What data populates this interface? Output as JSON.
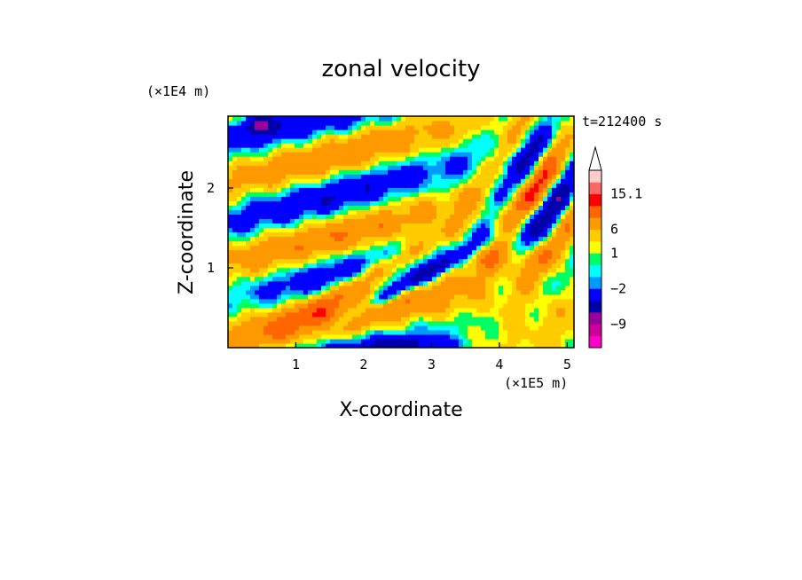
{
  "chart_data": {
    "type": "heatmap",
    "title": "zonal velocity",
    "xlabel": "X-coordinate",
    "ylabel": "Z-coordinate",
    "x_unit": "(×1E5 m)",
    "y_unit": "(×1E4 m)",
    "time_label": "t=212400 s",
    "xlim": [
      0,
      5.1
    ],
    "ylim": [
      0,
      2.9
    ],
    "xticks": [
      1,
      2,
      3,
      4,
      5
    ],
    "yticks": [
      1,
      2
    ],
    "colorbar": {
      "levels": [
        -15,
        -12,
        -9,
        -6,
        -3,
        -2,
        -1,
        0,
        1,
        3,
        6,
        9,
        12,
        15.1
      ],
      "labels": [
        {
          "text": "15.1",
          "value": 15.1
        },
        {
          "text": "6",
          "value": 6
        },
        {
          "text": "1",
          "value": 1
        },
        {
          "text": "−2",
          "value": -2
        },
        {
          "text": "−9",
          "value": -9
        }
      ],
      "colors": [
        "#ff00cc",
        "#cc0099",
        "#990099",
        "#0000aa",
        "#0000ff",
        "#0099ff",
        "#00ffff",
        "#00ff66",
        "#ffff00",
        "#ffcc00",
        "#ff9900",
        "#ff6600",
        "#ff0000",
        "#ff6666",
        "#ffcccc"
      ]
    },
    "bands": [
      {
        "z": 2.75,
        "amp": -4,
        "note": "upper left blue cell near x 0.4"
      },
      {
        "z": 2.45,
        "amp": 7,
        "note": "orange band upper left"
      },
      {
        "z": 2.1,
        "amp": 4
      },
      {
        "z": 1.75,
        "amp": -3
      },
      {
        "z": 1.55,
        "amp": 7,
        "note": "strong tilted orange band 1.5–3.2"
      },
      {
        "z": 1.1,
        "amp": -8,
        "note": "tilted blue band converging near x 3.3"
      },
      {
        "z": 0.7,
        "amp": 6
      },
      {
        "z": 0.3,
        "amp": 1
      }
    ]
  }
}
